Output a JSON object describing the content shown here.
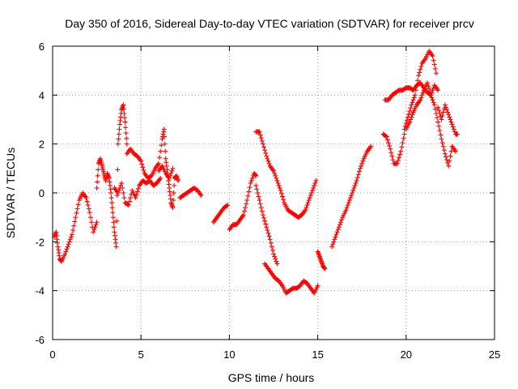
{
  "chart_data": {
    "type": "scatter",
    "title": "Day 350 of 2016, Sidereal Day-to-day VTEC variation (SDTVAR) for receiver prcv",
    "xlabel": "GPS time / hours",
    "ylabel": "SDTVAR / TECUs",
    "xlim": [
      0,
      25
    ],
    "ylim": [
      -6,
      6
    ],
    "xticks": [
      0,
      5,
      10,
      15,
      20,
      25
    ],
    "yticks": [
      -6,
      -4,
      -2,
      0,
      2,
      4,
      6
    ],
    "grid": true,
    "marker": "+",
    "color": "#ff0000",
    "series": [
      {
        "name": "SDTVAR",
        "segments": [
          {
            "x": [
              0.1,
              0.2,
              0.3,
              0.4,
              0.5,
              0.7,
              0.9,
              1.1,
              1.3,
              1.5,
              1.7,
              1.9,
              2.1,
              2.3,
              2.5
            ],
            "y": [
              -1.8,
              -1.6,
              -2.2,
              -2.7,
              -2.8,
              -2.5,
              -2.1,
              -1.7,
              -1.0,
              -0.3,
              0.0,
              -0.2,
              -0.8,
              -1.6,
              -1.2
            ]
          },
          {
            "x": [
              2.5,
              2.6,
              2.7,
              2.8,
              2.9,
              3.0,
              3.1,
              3.2,
              3.3,
              3.4,
              3.5,
              3.6,
              3.7,
              3.8,
              3.9,
              4.0,
              4.1,
              4.2
            ],
            "y": [
              0.2,
              1.2,
              1.4,
              1.1,
              0.8,
              0.5,
              0.8,
              0.6,
              0.0,
              -0.8,
              -1.6,
              -2.2,
              2.0,
              2.8,
              3.4,
              3.6,
              2.9,
              2.0
            ]
          },
          {
            "x": [
              3.5,
              3.7,
              3.9,
              4.1,
              4.3,
              4.5,
              4.7,
              4.9,
              5.1,
              5.3,
              5.5,
              5.7,
              5.9,
              6.1
            ],
            "y": [
              0.2,
              0.0,
              0.4,
              -0.4,
              -0.5,
              0.1,
              -0.2,
              0.3,
              0.5,
              0.4,
              0.5,
              0.3,
              0.4,
              0.6
            ]
          },
          {
            "x": [
              4.2,
              4.4,
              4.6,
              4.8,
              5.0,
              5.2,
              5.4,
              5.6,
              5.8,
              6.0,
              6.2,
              6.3,
              6.4,
              6.5,
              6.6,
              6.7,
              6.8,
              6.9,
              7.0,
              7.1
            ],
            "y": [
              1.6,
              1.8,
              1.6,
              1.5,
              1.3,
              0.8,
              0.6,
              0.7,
              1.0,
              1.2,
              2.2,
              2.6,
              1.4,
              0.8,
              0.2,
              -0.4,
              -0.6,
              0.6,
              0.7,
              0.5
            ]
          },
          {
            "x": [
              6.0,
              6.2,
              6.4,
              6.6,
              6.8
            ],
            "y": [
              0.9,
              1.1,
              0.8,
              0.6,
              1.0
            ]
          },
          {
            "x": [
              7.2,
              7.4,
              7.6,
              7.8,
              8.0,
              8.2,
              8.4
            ],
            "y": [
              -0.2,
              -0.1,
              0.0,
              0.1,
              0.2,
              0.1,
              -0.1
            ]
          },
          {
            "x": [
              9.1,
              9.3,
              9.5,
              9.7,
              9.9
            ],
            "y": [
              -1.2,
              -1.0,
              -0.8,
              -0.6,
              -0.5
            ]
          },
          {
            "x": [
              10.0,
              10.2,
              10.4,
              10.6,
              10.8,
              11.0,
              11.2,
              11.4,
              11.5
            ],
            "y": [
              -1.5,
              -1.3,
              -1.3,
              -1.1,
              -0.9,
              -0.3,
              0.4,
              0.8,
              0.7
            ]
          },
          {
            "x": [
              11.5,
              11.7,
              11.9,
              12.1,
              12.3,
              12.5,
              12.7,
              12.9,
              13.1,
              13.3,
              13.5,
              13.7,
              13.9,
              14.1,
              14.3,
              14.5,
              14.7,
              14.9
            ],
            "y": [
              2.5,
              2.5,
              2.0,
              1.5,
              1.1,
              0.9,
              0.5,
              0.1,
              -0.4,
              -0.7,
              -0.8,
              -0.9,
              -1.0,
              -0.9,
              -0.7,
              -0.3,
              0.1,
              0.5
            ]
          },
          {
            "x": [
              11.5,
              11.7,
              11.9,
              12.1,
              12.3,
              12.5,
              12.7
            ],
            "y": [
              0.3,
              -0.3,
              -0.9,
              -1.4,
              -1.9,
              -2.5,
              -2.9
            ]
          },
          {
            "x": [
              12.0,
              12.2,
              12.4,
              12.6,
              12.8,
              13.0,
              13.2,
              13.4,
              13.6,
              13.8,
              14.0,
              14.2,
              14.4,
              14.6,
              14.8,
              15.0
            ],
            "y": [
              -2.9,
              -3.1,
              -3.3,
              -3.5,
              -3.6,
              -3.8,
              -4.1,
              -4.0,
              -3.9,
              -3.9,
              -3.8,
              -3.6,
              -3.7,
              -3.9,
              -4.1,
              -3.8
            ]
          },
          {
            "x": [
              15.0,
              15.1,
              15.2,
              15.3,
              15.4
            ],
            "y": [
              -2.4,
              -2.6,
              -2.8,
              -3.0,
              -3.1
            ]
          },
          {
            "x": [
              15.8,
              16.0,
              16.2,
              16.4,
              16.6,
              16.8,
              17.0,
              17.2,
              17.4,
              17.6,
              17.8,
              18.0
            ],
            "y": [
              -2.2,
              -1.8,
              -1.4,
              -1.0,
              -0.7,
              -0.3,
              0.1,
              0.5,
              1.0,
              1.4,
              1.7,
              1.9
            ]
          },
          {
            "x": [
              18.7,
              18.9,
              19.1,
              19.3,
              19.5,
              19.7,
              19.9
            ],
            "y": [
              2.4,
              2.3,
              1.8,
              1.2,
              1.2,
              1.7,
              2.4
            ]
          },
          {
            "x": [
              18.8,
              19.0,
              19.2,
              19.4,
              19.6,
              19.8,
              20.0,
              20.2,
              20.4,
              20.6,
              20.8,
              21.0,
              21.2,
              21.4,
              21.6,
              21.8
            ],
            "y": [
              3.8,
              3.8,
              4.0,
              4.1,
              4.2,
              4.2,
              4.3,
              4.3,
              4.2,
              4.4,
              4.5,
              4.3,
              4.1,
              4.0,
              4.4,
              4.2
            ]
          },
          {
            "x": [
              19.9,
              20.1,
              20.3,
              20.5,
              20.7,
              20.9,
              21.1,
              21.3,
              21.5,
              21.7
            ],
            "y": [
              2.6,
              3.1,
              3.6,
              4.0,
              4.8,
              5.3,
              5.5,
              5.8,
              5.6,
              4.9
            ]
          },
          {
            "x": [
              20.0,
              20.2,
              20.4,
              20.6,
              20.8,
              21.0,
              21.2,
              21.4,
              21.6,
              21.8,
              22.0,
              22.2,
              22.4,
              22.6,
              22.8
            ],
            "y": [
              2.6,
              2.9,
              3.3,
              3.6,
              3.8,
              4.2,
              4.5,
              4.0,
              3.6,
              2.9,
              2.2,
              1.6,
              1.1,
              1.9,
              1.7
            ]
          },
          {
            "x": [
              21.8,
              22.0,
              22.2,
              22.4,
              22.6,
              22.8,
              22.9
            ],
            "y": [
              3.5,
              3.0,
              3.6,
              3.2,
              2.8,
              2.4,
              2.4
            ]
          }
        ]
      }
    ]
  }
}
